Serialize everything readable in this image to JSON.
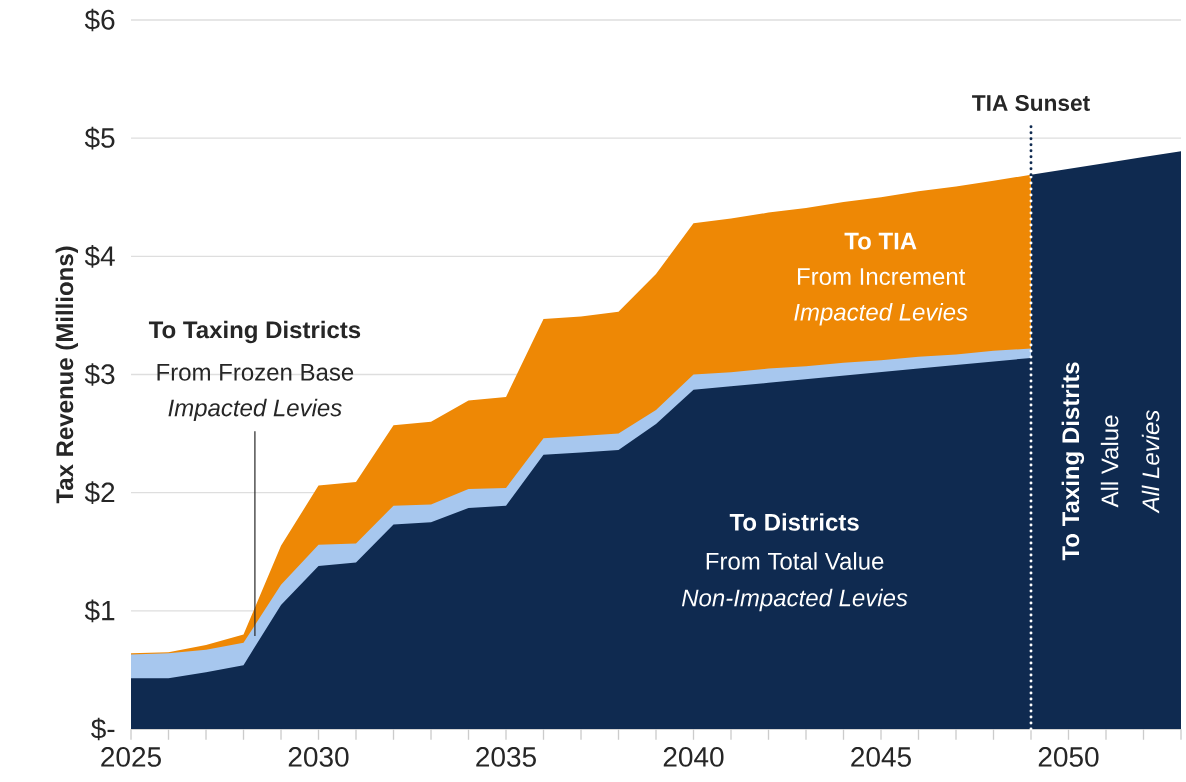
{
  "chart_data": {
    "type": "area",
    "x": [
      2025,
      2026,
      2027,
      2028,
      2029,
      2030,
      2031,
      2032,
      2033,
      2034,
      2035,
      2036,
      2037,
      2038,
      2039,
      2040,
      2041,
      2042,
      2043,
      2044,
      2045,
      2046,
      2047,
      2048,
      2049
    ],
    "series": [
      {
        "color": "#ee8805",
        "values": [
          0.64,
          0.65,
          0.71,
          0.8,
          1.55,
          2.06,
          2.09,
          2.57,
          2.6,
          2.78,
          2.81,
          3.47,
          3.49,
          3.53,
          3.85,
          4.28,
          4.32,
          4.37,
          4.41,
          4.46,
          4.5,
          4.55,
          4.59,
          4.64,
          4.69
        ]
      },
      {
        "color": "#a7c7ee",
        "values": [
          0.63,
          0.64,
          0.67,
          0.73,
          1.22,
          1.56,
          1.57,
          1.89,
          1.9,
          2.03,
          2.04,
          2.46,
          2.48,
          2.5,
          2.7,
          3.0,
          3.02,
          3.05,
          3.07,
          3.1,
          3.12,
          3.15,
          3.17,
          3.2,
          3.22
        ]
      },
      {
        "color": "#0f2a50",
        "values": [
          0.43,
          0.43,
          0.48,
          0.54,
          1.05,
          1.38,
          1.41,
          1.73,
          1.75,
          1.87,
          1.89,
          2.32,
          2.34,
          2.36,
          2.58,
          2.87,
          2.9,
          2.93,
          2.96,
          2.99,
          3.02,
          3.05,
          3.08,
          3.11,
          3.14
        ]
      },
      {
        "color": "#0f2a50",
        "x": [
          2049,
          2050,
          2051,
          2052,
          2053
        ],
        "values": [
          4.69,
          4.74,
          4.79,
          4.84,
          4.89
        ]
      }
    ],
    "ylabel": "Tax Revenue (Millions)",
    "xlim": [
      2025,
      2053
    ],
    "xticks": [
      2025,
      {
        "value": 2026,
        "label": null
      },
      {
        "value": 2027,
        "label": null
      },
      {
        "value": 2028,
        "label": null
      },
      {
        "value": 2029,
        "label": null
      },
      2030,
      {
        "value": 2031,
        "label": null
      },
      {
        "value": 2032,
        "label": null
      },
      {
        "value": 2033,
        "label": null
      },
      {
        "value": 2034,
        "label": null
      },
      2035,
      {
        "value": 2036,
        "label": null
      },
      {
        "value": 2037,
        "label": null
      },
      {
        "value": 2038,
        "label": null
      },
      {
        "value": 2039,
        "label": null
      },
      2040,
      {
        "value": 2041,
        "label": null
      },
      {
        "value": 2042,
        "label": null
      },
      {
        "value": 2043,
        "label": null
      },
      {
        "value": 2044,
        "label": null
      },
      2045,
      {
        "value": 2046,
        "label": null
      },
      {
        "value": 2047,
        "label": null
      },
      {
        "value": 2048,
        "label": null
      },
      {
        "value": 2049,
        "label": null
      },
      2050,
      {
        "value": 2051,
        "label": null
      },
      {
        "value": 2052,
        "label": null
      },
      {
        "value": 2053,
        "label": null
      }
    ],
    "ylim": [
      0,
      6
    ],
    "yticks": [
      {
        "value": 0,
        "label": "$-"
      },
      {
        "value": 1,
        "label": "$1"
      },
      {
        "value": 2,
        "label": "$2"
      },
      {
        "value": 3,
        "label": "$3"
      },
      {
        "value": 4,
        "label": "$4"
      },
      {
        "value": 5,
        "label": "$5"
      },
      {
        "value": 6,
        "label": "$6"
      }
    ],
    "grid": "y",
    "ref_lines": [
      {
        "axis": "x",
        "value": 2049,
        "label": "TIA Sunset",
        "color": "#ffffff",
        "line_style": "dotted"
      }
    ],
    "annotations": [
      "**To Taxing Districts**",
      "From Frozen Base",
      "*Impacted Levies*",
      "**To TIA**",
      "From Increment",
      "*Impacted Levies*",
      "**To Districts**",
      "From Total Value",
      "*Non-Impacted Levies*",
      "**To Taxing Distrits**",
      "All Value",
      "*All Levies*"
    ]
  }
}
